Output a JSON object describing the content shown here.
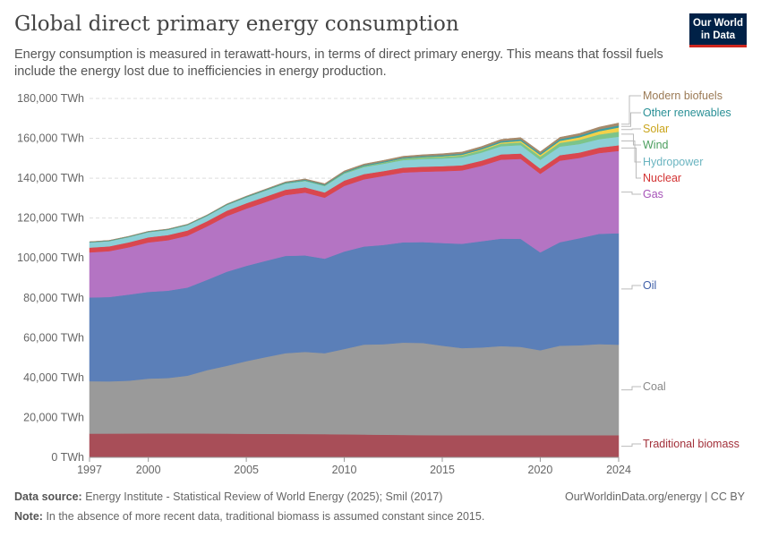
{
  "header": {
    "title": "Global direct primary energy consumption",
    "subtitle": "Energy consumption is measured in terawatt-hours, in terms of direct primary energy. This means that fossil fuels include the energy lost due to inefficiencies in energy production.",
    "logo": "Our World in Data"
  },
  "footer": {
    "source_label": "Data source:",
    "source": "Energy Institute - Statistical Review of World Energy (2025); Smil (2017)",
    "link": "OurWorldinData.org/energy | CC BY",
    "note_label": "Note:",
    "note": "In the absence of more recent data, traditional biomass is assumed constant since 2015."
  },
  "chart_data": {
    "type": "area",
    "stacked": true,
    "x": [
      1997,
      1998,
      1999,
      2000,
      2001,
      2002,
      2003,
      2004,
      2005,
      2006,
      2007,
      2008,
      2009,
      2010,
      2011,
      2012,
      2013,
      2014,
      2015,
      2016,
      2017,
      2018,
      2019,
      2020,
      2021,
      2022,
      2023,
      2024
    ],
    "xticks": [
      "1997",
      "2000",
      "2005",
      "2010",
      "2015",
      "2020",
      "2024"
    ],
    "ylim": [
      0,
      180000
    ],
    "yticks": [
      "0 TWh",
      "20,000 TWh",
      "40,000 TWh",
      "60,000 TWh",
      "80,000 TWh",
      "100,000 TWh",
      "120,000 TWh",
      "140,000 TWh",
      "160,000 TWh",
      "180,000 TWh"
    ],
    "grid": true,
    "legend": "right",
    "series": [
      {
        "name": "Traditional biomass",
        "color": "#a84e58",
        "label_color": "#a2303a",
        "values": [
          11900,
          11920,
          11950,
          12000,
          12000,
          11980,
          11950,
          11900,
          11850,
          11800,
          11750,
          11700,
          11650,
          11550,
          11450,
          11350,
          11250,
          11180,
          11110,
          11110,
          11110,
          11110,
          11110,
          11110,
          11110,
          11110,
          11110,
          11110
        ]
      },
      {
        "name": "Coal",
        "color": "#9a9a9a",
        "label_color": "#888888",
        "values": [
          26300,
          26200,
          26500,
          27500,
          27800,
          29000,
          31800,
          34000,
          36400,
          38500,
          40500,
          41200,
          40600,
          42800,
          45100,
          45400,
          46300,
          46200,
          44900,
          43700,
          44000,
          44700,
          44300,
          42600,
          44900,
          45100,
          45700,
          45400
        ]
      },
      {
        "name": "Oil",
        "color": "#5b7fb8",
        "label_color": "#3f5fa8",
        "values": [
          42000,
          42300,
          43200,
          43500,
          43800,
          44200,
          45300,
          47200,
          47800,
          48300,
          48800,
          48400,
          47400,
          48900,
          49200,
          49800,
          50300,
          50600,
          51500,
          52300,
          53300,
          53900,
          54200,
          49100,
          51900,
          53700,
          55300,
          55900
        ]
      },
      {
        "name": "Gas",
        "color": "#b474c3",
        "label_color": "#a653b8",
        "values": [
          22600,
          23000,
          23700,
          24800,
          25300,
          26000,
          26800,
          27900,
          28700,
          29500,
          30500,
          31500,
          30600,
          32900,
          33700,
          34600,
          35000,
          35300,
          36000,
          36800,
          37800,
          39600,
          40100,
          39400,
          40900,
          40300,
          40500,
          41300
        ]
      },
      {
        "name": "Nuclear",
        "color": "#d9474f",
        "label_color": "#d33333",
        "values": [
          2400,
          2420,
          2500,
          2550,
          2600,
          2630,
          2600,
          2700,
          2710,
          2740,
          2700,
          2650,
          2620,
          2700,
          2620,
          2450,
          2470,
          2500,
          2530,
          2570,
          2600,
          2660,
          2700,
          2600,
          2760,
          2680,
          2740,
          2820
        ]
      },
      {
        "name": "Hydropower",
        "color": "#8ccfd6",
        "label_color": "#6ab4c0",
        "values": [
          2600,
          2620,
          2640,
          2620,
          2600,
          2650,
          2640,
          2800,
          2900,
          3000,
          3050,
          3150,
          3200,
          3450,
          3500,
          3650,
          3750,
          3850,
          3850,
          3950,
          4050,
          4100,
          4200,
          4400,
          4300,
          4250,
          4250,
          4300
        ]
      },
      {
        "name": "Wind",
        "color": "#7cc48a",
        "label_color": "#4b9e5e",
        "values": [
          12,
          16,
          22,
          31,
          38,
          52,
          63,
          85,
          104,
          133,
          170,
          220,
          276,
          346,
          437,
          521,
          640,
          712,
          831,
          960,
          1130,
          1270,
          1420,
          1600,
          1850,
          2100,
          2330,
          2500
        ]
      },
      {
        "name": "Solar",
        "color": "#f2d14a",
        "label_color": "#c9a41a",
        "values": [
          0,
          0,
          0,
          1,
          1,
          1,
          1,
          2,
          4,
          6,
          8,
          12,
          20,
          32,
          64,
          100,
          140,
          190,
          256,
          330,
          440,
          570,
          700,
          850,
          1030,
          1300,
          1640,
          2130
        ]
      },
      {
        "name": "Other renewables",
        "color": "#3a9ea4",
        "label_color": "#2a9096",
        "values": [
          270,
          280,
          290,
          300,
          305,
          320,
          330,
          350,
          370,
          390,
          410,
          430,
          450,
          480,
          500,
          520,
          550,
          580,
          610,
          650,
          680,
          720,
          760,
          800,
          850,
          900,
          950,
          1000
        ]
      },
      {
        "name": "Modern biofuels",
        "color": "#a6896a",
        "label_color": "#9b7a55",
        "values": [
          80,
          80,
          85,
          90,
          95,
          110,
          130,
          160,
          200,
          240,
          310,
          400,
          470,
          540,
          560,
          570,
          620,
          680,
          720,
          760,
          800,
          860,
          900,
          820,
          920,
          1000,
          1120,
          1250
        ]
      }
    ]
  }
}
